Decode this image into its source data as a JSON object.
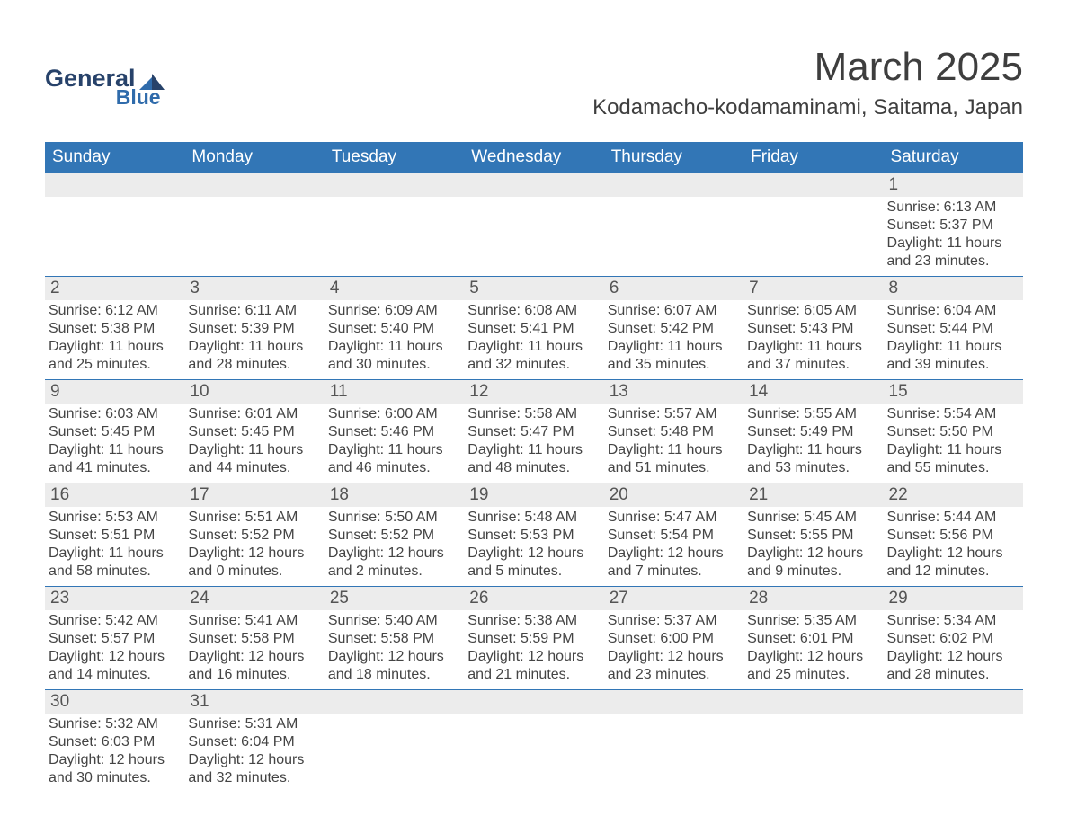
{
  "brand": {
    "line1": "General",
    "line2": "Blue",
    "accent": "#2f6bab",
    "dark": "#27426a"
  },
  "title": "March 2025",
  "location": "Kodamacho-kodamaminami, Saitama, Japan",
  "header_bg": "#3276b6",
  "header_fg": "#ffffff",
  "daynum_bg": "#ececec",
  "divider_color": "#3276b6",
  "title_fontsize": 44,
  "location_fontsize": 24,
  "dow_fontsize": 19,
  "body_fontsize": 16,
  "dow": [
    "Sunday",
    "Monday",
    "Tuesday",
    "Wednesday",
    "Thursday",
    "Friday",
    "Saturday"
  ],
  "weeks": [
    [
      {
        "n": "",
        "lines": [
          "",
          "",
          "",
          ""
        ]
      },
      {
        "n": "",
        "lines": [
          "",
          "",
          "",
          ""
        ]
      },
      {
        "n": "",
        "lines": [
          "",
          "",
          "",
          ""
        ]
      },
      {
        "n": "",
        "lines": [
          "",
          "",
          "",
          ""
        ]
      },
      {
        "n": "",
        "lines": [
          "",
          "",
          "",
          ""
        ]
      },
      {
        "n": "",
        "lines": [
          "",
          "",
          "",
          ""
        ]
      },
      {
        "n": "1",
        "lines": [
          "Sunrise: 6:13 AM",
          "Sunset: 5:37 PM",
          "Daylight: 11 hours",
          "and 23 minutes."
        ]
      }
    ],
    [
      {
        "n": "2",
        "lines": [
          "Sunrise: 6:12 AM",
          "Sunset: 5:38 PM",
          "Daylight: 11 hours",
          "and 25 minutes."
        ]
      },
      {
        "n": "3",
        "lines": [
          "Sunrise: 6:11 AM",
          "Sunset: 5:39 PM",
          "Daylight: 11 hours",
          "and 28 minutes."
        ]
      },
      {
        "n": "4",
        "lines": [
          "Sunrise: 6:09 AM",
          "Sunset: 5:40 PM",
          "Daylight: 11 hours",
          "and 30 minutes."
        ]
      },
      {
        "n": "5",
        "lines": [
          "Sunrise: 6:08 AM",
          "Sunset: 5:41 PM",
          "Daylight: 11 hours",
          "and 32 minutes."
        ]
      },
      {
        "n": "6",
        "lines": [
          "Sunrise: 6:07 AM",
          "Sunset: 5:42 PM",
          "Daylight: 11 hours",
          "and 35 minutes."
        ]
      },
      {
        "n": "7",
        "lines": [
          "Sunrise: 6:05 AM",
          "Sunset: 5:43 PM",
          "Daylight: 11 hours",
          "and 37 minutes."
        ]
      },
      {
        "n": "8",
        "lines": [
          "Sunrise: 6:04 AM",
          "Sunset: 5:44 PM",
          "Daylight: 11 hours",
          "and 39 minutes."
        ]
      }
    ],
    [
      {
        "n": "9",
        "lines": [
          "Sunrise: 6:03 AM",
          "Sunset: 5:45 PM",
          "Daylight: 11 hours",
          "and 41 minutes."
        ]
      },
      {
        "n": "10",
        "lines": [
          "Sunrise: 6:01 AM",
          "Sunset: 5:45 PM",
          "Daylight: 11 hours",
          "and 44 minutes."
        ]
      },
      {
        "n": "11",
        "lines": [
          "Sunrise: 6:00 AM",
          "Sunset: 5:46 PM",
          "Daylight: 11 hours",
          "and 46 minutes."
        ]
      },
      {
        "n": "12",
        "lines": [
          "Sunrise: 5:58 AM",
          "Sunset: 5:47 PM",
          "Daylight: 11 hours",
          "and 48 minutes."
        ]
      },
      {
        "n": "13",
        "lines": [
          "Sunrise: 5:57 AM",
          "Sunset: 5:48 PM",
          "Daylight: 11 hours",
          "and 51 minutes."
        ]
      },
      {
        "n": "14",
        "lines": [
          "Sunrise: 5:55 AM",
          "Sunset: 5:49 PM",
          "Daylight: 11 hours",
          "and 53 minutes."
        ]
      },
      {
        "n": "15",
        "lines": [
          "Sunrise: 5:54 AM",
          "Sunset: 5:50 PM",
          "Daylight: 11 hours",
          "and 55 minutes."
        ]
      }
    ],
    [
      {
        "n": "16",
        "lines": [
          "Sunrise: 5:53 AM",
          "Sunset: 5:51 PM",
          "Daylight: 11 hours",
          "and 58 minutes."
        ]
      },
      {
        "n": "17",
        "lines": [
          "Sunrise: 5:51 AM",
          "Sunset: 5:52 PM",
          "Daylight: 12 hours",
          "and 0 minutes."
        ]
      },
      {
        "n": "18",
        "lines": [
          "Sunrise: 5:50 AM",
          "Sunset: 5:52 PM",
          "Daylight: 12 hours",
          "and 2 minutes."
        ]
      },
      {
        "n": "19",
        "lines": [
          "Sunrise: 5:48 AM",
          "Sunset: 5:53 PM",
          "Daylight: 12 hours",
          "and 5 minutes."
        ]
      },
      {
        "n": "20",
        "lines": [
          "Sunrise: 5:47 AM",
          "Sunset: 5:54 PM",
          "Daylight: 12 hours",
          "and 7 minutes."
        ]
      },
      {
        "n": "21",
        "lines": [
          "Sunrise: 5:45 AM",
          "Sunset: 5:55 PM",
          "Daylight: 12 hours",
          "and 9 minutes."
        ]
      },
      {
        "n": "22",
        "lines": [
          "Sunrise: 5:44 AM",
          "Sunset: 5:56 PM",
          "Daylight: 12 hours",
          "and 12 minutes."
        ]
      }
    ],
    [
      {
        "n": "23",
        "lines": [
          "Sunrise: 5:42 AM",
          "Sunset: 5:57 PM",
          "Daylight: 12 hours",
          "and 14 minutes."
        ]
      },
      {
        "n": "24",
        "lines": [
          "Sunrise: 5:41 AM",
          "Sunset: 5:58 PM",
          "Daylight: 12 hours",
          "and 16 minutes."
        ]
      },
      {
        "n": "25",
        "lines": [
          "Sunrise: 5:40 AM",
          "Sunset: 5:58 PM",
          "Daylight: 12 hours",
          "and 18 minutes."
        ]
      },
      {
        "n": "26",
        "lines": [
          "Sunrise: 5:38 AM",
          "Sunset: 5:59 PM",
          "Daylight: 12 hours",
          "and 21 minutes."
        ]
      },
      {
        "n": "27",
        "lines": [
          "Sunrise: 5:37 AM",
          "Sunset: 6:00 PM",
          "Daylight: 12 hours",
          "and 23 minutes."
        ]
      },
      {
        "n": "28",
        "lines": [
          "Sunrise: 5:35 AM",
          "Sunset: 6:01 PM",
          "Daylight: 12 hours",
          "and 25 minutes."
        ]
      },
      {
        "n": "29",
        "lines": [
          "Sunrise: 5:34 AM",
          "Sunset: 6:02 PM",
          "Daylight: 12 hours",
          "and 28 minutes."
        ]
      }
    ],
    [
      {
        "n": "30",
        "lines": [
          "Sunrise: 5:32 AM",
          "Sunset: 6:03 PM",
          "Daylight: 12 hours",
          "and 30 minutes."
        ]
      },
      {
        "n": "31",
        "lines": [
          "Sunrise: 5:31 AM",
          "Sunset: 6:04 PM",
          "Daylight: 12 hours",
          "and 32 minutes."
        ]
      },
      {
        "n": "",
        "lines": [
          "",
          "",
          "",
          ""
        ]
      },
      {
        "n": "",
        "lines": [
          "",
          "",
          "",
          ""
        ]
      },
      {
        "n": "",
        "lines": [
          "",
          "",
          "",
          ""
        ]
      },
      {
        "n": "",
        "lines": [
          "",
          "",
          "",
          ""
        ]
      },
      {
        "n": "",
        "lines": [
          "",
          "",
          "",
          ""
        ]
      }
    ]
  ]
}
